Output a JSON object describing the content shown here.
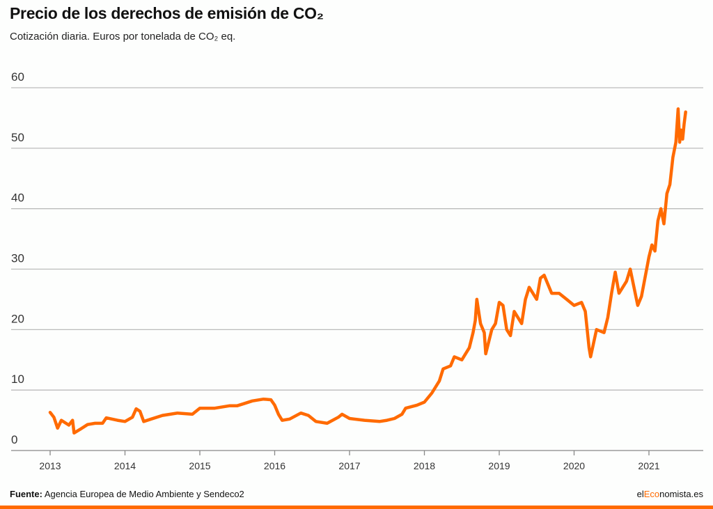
{
  "title": "Precio de los derechos de emisión de CO₂",
  "subtitle": "Cotización diaria. Euros por tonelada de CO₂ eq.",
  "footer": {
    "source_label": "Fuente:",
    "source_text": "Agencia Europea de Medio Ambiente y Sendeco2"
  },
  "brand": {
    "part1": "el",
    "part2": "Eco",
    "part3": "nomista.es"
  },
  "colors": {
    "line": "#ff6a00",
    "grid": "#bbbbbb",
    "accent": "#ff6a00"
  },
  "chart_data": {
    "type": "line",
    "title": "Precio de los derechos de emisión de CO₂",
    "xlabel": "",
    "ylabel": "",
    "xlim": [
      2013,
      2021.5
    ],
    "ylim": [
      0,
      60
    ],
    "grid": true,
    "x_ticks": [
      "2013",
      "2014",
      "2015",
      "2016",
      "2017",
      "2018",
      "2019",
      "2020",
      "2021"
    ],
    "y_ticks": [
      "0",
      "10",
      "20",
      "30",
      "40",
      "50",
      "60"
    ],
    "series": [
      {
        "x": [
          2013.0,
          2013.05,
          2013.1,
          2013.15,
          2013.25,
          2013.3,
          2013.32,
          2013.4,
          2013.5,
          2013.6,
          2013.7,
          2013.75,
          2013.9,
          2014.0,
          2014.1,
          2014.15,
          2014.2,
          2014.25,
          2014.35,
          2014.5,
          2014.7,
          2014.9,
          2015.0,
          2015.2,
          2015.4,
          2015.5,
          2015.6,
          2015.7,
          2015.85,
          2015.95,
          2016.0,
          2016.05,
          2016.1,
          2016.2,
          2016.35,
          2016.45,
          2016.55,
          2016.7,
          2016.85,
          2016.9,
          2017.0,
          2017.2,
          2017.4,
          2017.5,
          2017.6,
          2017.7,
          2017.75,
          2017.9,
          2018.0,
          2018.1,
          2018.2,
          2018.25,
          2018.35,
          2018.4,
          2018.5,
          2018.6,
          2018.65,
          2018.68,
          2018.7,
          2018.75,
          2018.8,
          2018.82,
          2018.9,
          2018.95,
          2019.0,
          2019.05,
          2019.1,
          2019.15,
          2019.2,
          2019.3,
          2019.35,
          2019.4,
          2019.5,
          2019.55,
          2019.6,
          2019.7,
          2019.8,
          2019.9,
          2020.0,
          2020.1,
          2020.15,
          2020.2,
          2020.22,
          2020.3,
          2020.4,
          2020.45,
          2020.5,
          2020.55,
          2020.6,
          2020.7,
          2020.75,
          2020.8,
          2020.85,
          2020.9,
          2021.0,
          2021.04,
          2021.08,
          2021.12,
          2021.16,
          2021.2,
          2021.24,
          2021.28,
          2021.32,
          2021.36,
          2021.39,
          2021.41,
          2021.43,
          2021.45,
          2021.47,
          2021.49
        ],
        "y": [
          6.3,
          5.5,
          3.7,
          5.0,
          4.2,
          5.0,
          2.9,
          3.5,
          4.3,
          4.5,
          4.5,
          5.4,
          5.0,
          4.8,
          5.5,
          6.9,
          6.5,
          4.8,
          5.2,
          5.8,
          6.2,
          6.0,
          7.0,
          7.0,
          7.4,
          7.4,
          7.8,
          8.2,
          8.5,
          8.4,
          7.5,
          6.0,
          5.0,
          5.2,
          6.2,
          5.8,
          4.8,
          4.5,
          5.5,
          6.0,
          5.3,
          5.0,
          4.8,
          5.0,
          5.3,
          6.0,
          7.0,
          7.5,
          8.0,
          9.5,
          11.5,
          13.5,
          14.0,
          15.5,
          15.0,
          17.0,
          19.5,
          21.5,
          25.0,
          21.0,
          19.5,
          16.0,
          20.0,
          21.0,
          24.5,
          24.0,
          20.0,
          19.0,
          23.0,
          21.0,
          25.0,
          27.0,
          25.0,
          28.5,
          29.0,
          26.0,
          26.0,
          25.0,
          24.0,
          24.5,
          23.0,
          17.0,
          15.5,
          20.0,
          19.5,
          22.0,
          26.0,
          29.5,
          26.0,
          28.0,
          30.0,
          27.0,
          24.0,
          25.5,
          32.0,
          34.0,
          33.0,
          38.0,
          40.0,
          37.5,
          42.5,
          44.0,
          48.5,
          51.0,
          56.5,
          51.0,
          53.0,
          51.5,
          54.0,
          56.0
        ]
      }
    ]
  }
}
